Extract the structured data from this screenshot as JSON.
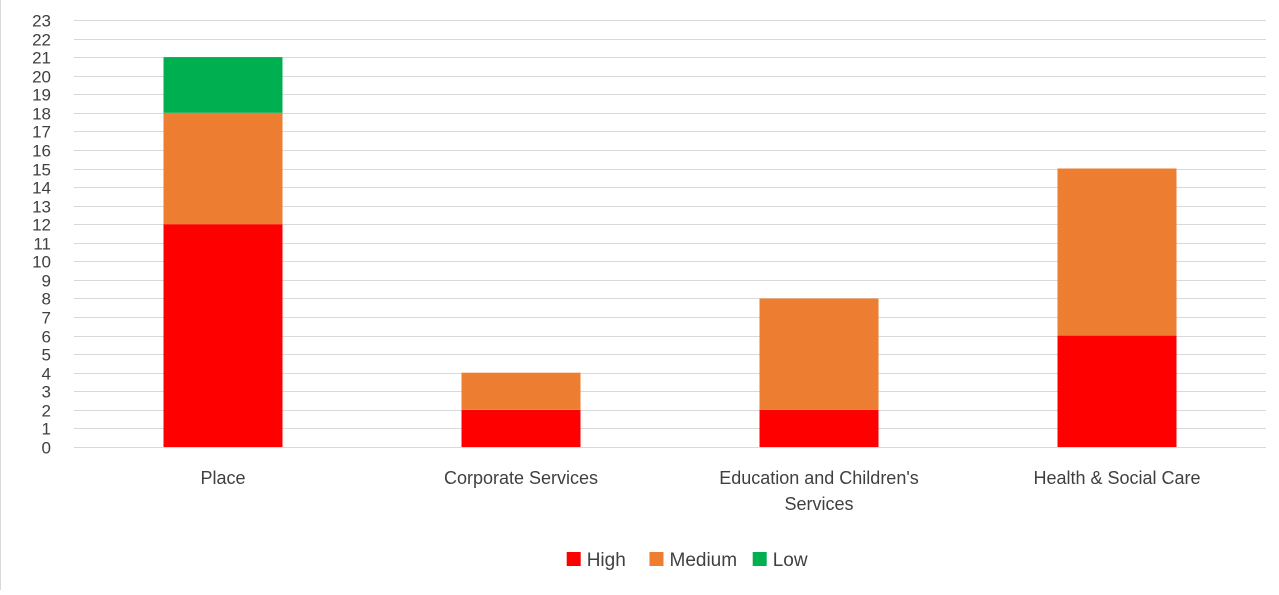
{
  "chart_data": {
    "type": "bar",
    "stacked": true,
    "categories": [
      "Place",
      "Corporate Services",
      "Education and Children's Services",
      "Health & Social Care"
    ],
    "series": [
      {
        "name": "High",
        "color": "#ff0000",
        "values": [
          12,
          2,
          2,
          6
        ]
      },
      {
        "name": "Medium",
        "color": "#ed7d31",
        "values": [
          6,
          2,
          6,
          9
        ]
      },
      {
        "name": "Low",
        "color": "#00b050",
        "values": [
          3,
          0,
          0,
          0
        ]
      }
    ],
    "ylim": [
      0,
      23
    ],
    "ytick_step": 1,
    "grid": true,
    "legend": "bottom",
    "title": "",
    "xlabel": "",
    "ylabel": ""
  }
}
